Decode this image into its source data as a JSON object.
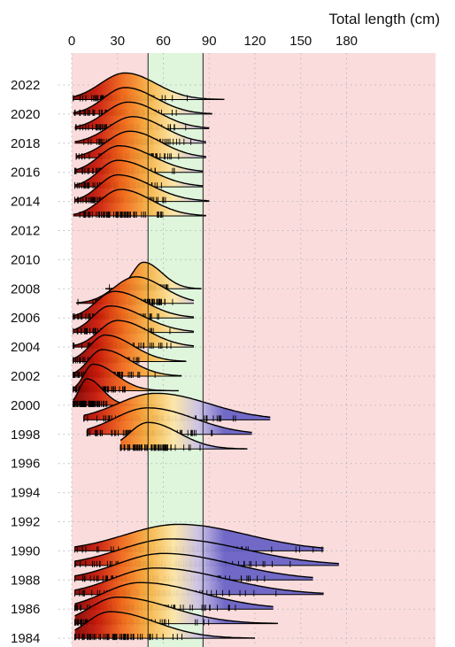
{
  "colors": {
    "background_zone": "#fbdcdc",
    "target_zone": "#dff5dc",
    "ridge_gradient": [
      "#7a0000",
      "#c81a0a",
      "#f06a1c",
      "#f7b244",
      "#fde6a6",
      "#c9c0e6",
      "#6a63c6"
    ]
  },
  "chart_data": {
    "type": "ridgeline",
    "title": "",
    "xlabel": "Total length (cm)",
    "ylabel": "",
    "xlim": [
      0,
      180
    ],
    "x_ticks": [
      0,
      30,
      60,
      90,
      120,
      150,
      180
    ],
    "highlight_band": [
      50,
      86
    ],
    "grid": true,
    "year_labels": [
      "2022",
      "2020",
      "2018",
      "2016",
      "2014",
      "2012",
      "2010",
      "2008",
      "2006",
      "2004",
      "2002",
      "2000",
      "1998",
      "1996",
      "1994",
      "1992",
      "1990",
      "1988",
      "1986",
      "1984"
    ],
    "series": [
      {
        "year": 2021,
        "min": 1,
        "max": 100,
        "mode": 35,
        "sd_left": 16,
        "sd_right": 20
      },
      {
        "year": 2020,
        "min": 1,
        "max": 92,
        "mode": 35,
        "sd_left": 14,
        "sd_right": 20
      },
      {
        "year": 2019,
        "min": 2,
        "max": 90,
        "mode": 37,
        "sd_left": 15,
        "sd_right": 20
      },
      {
        "year": 2018,
        "min": 2,
        "max": 88,
        "mode": 40,
        "sd_left": 16,
        "sd_right": 20
      },
      {
        "year": 2017,
        "min": 3,
        "max": 88,
        "mode": 38,
        "sd_left": 15,
        "sd_right": 20
      },
      {
        "year": 2016,
        "min": 2,
        "max": 86,
        "mode": 31,
        "sd_left": 13,
        "sd_right": 22
      },
      {
        "year": 2015,
        "min": 2,
        "max": 86,
        "mode": 30,
        "sd_left": 12,
        "sd_right": 22
      },
      {
        "year": 2014,
        "min": 2,
        "max": 90,
        "mode": 30,
        "sd_left": 12,
        "sd_right": 22
      },
      {
        "year": 2013,
        "min": 1,
        "max": 88,
        "mode": 32,
        "sd_left": 13,
        "sd_right": 20
      },
      {
        "year": 2008,
        "min": 22,
        "max": 85,
        "mode": 47,
        "sd_left": 7,
        "sd_right": 12
      },
      {
        "year": 2007,
        "min": 3,
        "max": 80,
        "mode": 42,
        "sd_left": 14,
        "sd_right": 18
      },
      {
        "year": 2006,
        "min": 1,
        "max": 80,
        "mode": 28,
        "sd_left": 12,
        "sd_right": 20
      },
      {
        "year": 2005,
        "min": 1,
        "max": 80,
        "mode": 25,
        "sd_left": 11,
        "sd_right": 22
      },
      {
        "year": 2004,
        "min": 1,
        "max": 80,
        "mode": 30,
        "sd_left": 12,
        "sd_right": 20
      },
      {
        "year": 2003,
        "min": 1,
        "max": 75,
        "mode": 22,
        "sd_left": 10,
        "sd_right": 18
      },
      {
        "year": 2002,
        "min": 1,
        "max": 72,
        "mode": 20,
        "sd_left": 9,
        "sd_right": 18
      },
      {
        "year": 2001,
        "min": 1,
        "max": 70,
        "mode": 14,
        "sd_left": 6,
        "sd_right": 15
      },
      {
        "year": 2000,
        "min": 1,
        "max": 60,
        "mode": 10,
        "sd_left": 5,
        "sd_right": 10
      },
      {
        "year": 1999,
        "min": 8,
        "max": 130,
        "mode": 55,
        "sd_left": 25,
        "sd_right": 35
      },
      {
        "year": 1998,
        "min": 10,
        "max": 118,
        "mode": 50,
        "sd_left": 22,
        "sd_right": 30
      },
      {
        "year": 1997,
        "min": 32,
        "max": 115,
        "mode": 50,
        "sd_left": 12,
        "sd_right": 20
      },
      {
        "year": 1990,
        "min": 2,
        "max": 165,
        "mode": 70,
        "sd_left": 35,
        "sd_right": 45
      },
      {
        "year": 1989,
        "min": 2,
        "max": 175,
        "mode": 65,
        "sd_left": 33,
        "sd_right": 48
      },
      {
        "year": 1988,
        "min": 2,
        "max": 158,
        "mode": 60,
        "sd_left": 30,
        "sd_right": 45
      },
      {
        "year": 1987,
        "min": 2,
        "max": 165,
        "mode": 55,
        "sd_left": 28,
        "sd_right": 45
      },
      {
        "year": 1986,
        "min": 2,
        "max": 132,
        "mode": 45,
        "sd_left": 24,
        "sd_right": 40
      },
      {
        "year": 1985,
        "min": 2,
        "max": 135,
        "mode": 30,
        "sd_left": 18,
        "sd_right": 35
      },
      {
        "year": 1984,
        "min": 2,
        "max": 120,
        "mode": 25,
        "sd_left": 15,
        "sd_right": 30
      }
    ]
  }
}
